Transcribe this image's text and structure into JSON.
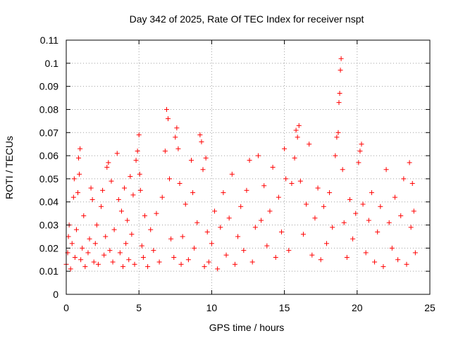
{
  "chart_data": {
    "type": "scatter",
    "title": "Day 342 of 2025, Rate Of TEC Index for receiver nspt",
    "xlabel": "GPS time / hours",
    "ylabel": "ROTI / TECUs",
    "xlim": [
      0,
      25
    ],
    "ylim": [
      0,
      0.11
    ],
    "xticks": [
      0,
      5,
      10,
      15,
      20,
      25
    ],
    "xtick_labels": [
      "0",
      "5",
      "10",
      "15",
      "20",
      "25"
    ],
    "yticks": [
      0,
      0.01,
      0.02,
      0.03,
      0.04,
      0.05,
      0.06,
      0.07,
      0.08,
      0.09,
      0.1,
      0.11
    ],
    "ytick_labels": [
      "0",
      "0.01",
      "0.02",
      "0.03",
      "0.04",
      "0.05",
      "0.06",
      "0.07",
      "0.08",
      "0.09",
      "0.1",
      "0.11"
    ],
    "grid": true,
    "marker": "+",
    "color": "#ff0000",
    "series": [
      {
        "name": "ROTI",
        "points": [
          [
            0.0,
            0.013
          ],
          [
            0.1,
            0.018
          ],
          [
            0.15,
            0.025
          ],
          [
            0.2,
            0.03
          ],
          [
            0.3,
            0.011
          ],
          [
            0.4,
            0.022
          ],
          [
            0.5,
            0.042
          ],
          [
            0.55,
            0.05
          ],
          [
            0.6,
            0.016
          ],
          [
            0.7,
            0.028
          ],
          [
            0.8,
            0.044
          ],
          [
            0.85,
            0.059
          ],
          [
            0.9,
            0.052
          ],
          [
            0.95,
            0.063
          ],
          [
            1.0,
            0.015
          ],
          [
            1.1,
            0.02
          ],
          [
            1.2,
            0.034
          ],
          [
            1.3,
            0.012
          ],
          [
            1.5,
            0.018
          ],
          [
            1.6,
            0.024
          ],
          [
            1.7,
            0.046
          ],
          [
            1.8,
            0.041
          ],
          [
            1.9,
            0.014
          ],
          [
            2.0,
            0.022
          ],
          [
            2.1,
            0.03
          ],
          [
            2.2,
            0.013
          ],
          [
            2.4,
            0.038
          ],
          [
            2.5,
            0.045
          ],
          [
            2.6,
            0.017
          ],
          [
            2.7,
            0.025
          ],
          [
            2.8,
            0.055
          ],
          [
            2.9,
            0.057
          ],
          [
            3.0,
            0.019
          ],
          [
            3.1,
            0.049
          ],
          [
            3.2,
            0.014
          ],
          [
            3.3,
            0.028
          ],
          [
            3.5,
            0.061
          ],
          [
            3.6,
            0.041
          ],
          [
            3.7,
            0.018
          ],
          [
            3.8,
            0.036
          ],
          [
            3.9,
            0.012
          ],
          [
            4.0,
            0.046
          ],
          [
            4.1,
            0.022
          ],
          [
            4.2,
            0.032
          ],
          [
            4.3,
            0.015
          ],
          [
            4.4,
            0.051
          ],
          [
            4.5,
            0.026
          ],
          [
            4.6,
            0.043
          ],
          [
            4.7,
            0.013
          ],
          [
            4.8,
            0.058
          ],
          [
            4.9,
            0.062
          ],
          [
            5.0,
            0.069
          ],
          [
            5.05,
            0.052
          ],
          [
            5.1,
            0.045
          ],
          [
            5.2,
            0.021
          ],
          [
            5.3,
            0.016
          ],
          [
            5.4,
            0.034
          ],
          [
            5.6,
            0.012
          ],
          [
            5.8,
            0.028
          ],
          [
            6.0,
            0.019
          ],
          [
            6.2,
            0.035
          ],
          [
            6.4,
            0.014
          ],
          [
            6.6,
            0.042
          ],
          [
            6.8,
            0.062
          ],
          [
            6.9,
            0.08
          ],
          [
            7.0,
            0.076
          ],
          [
            7.1,
            0.05
          ],
          [
            7.2,
            0.024
          ],
          [
            7.4,
            0.016
          ],
          [
            7.5,
            0.068
          ],
          [
            7.6,
            0.072
          ],
          [
            7.7,
            0.063
          ],
          [
            7.8,
            0.048
          ],
          [
            7.9,
            0.013
          ],
          [
            8.0,
            0.025
          ],
          [
            8.2,
            0.039
          ],
          [
            8.4,
            0.015
          ],
          [
            8.6,
            0.058
          ],
          [
            8.7,
            0.044
          ],
          [
            8.8,
            0.02
          ],
          [
            9.0,
            0.031
          ],
          [
            9.2,
            0.069
          ],
          [
            9.3,
            0.066
          ],
          [
            9.4,
            0.054
          ],
          [
            9.5,
            0.012
          ],
          [
            9.6,
            0.059
          ],
          [
            9.7,
            0.027
          ],
          [
            9.8,
            0.014
          ],
          [
            10.0,
            0.022
          ],
          [
            10.2,
            0.036
          ],
          [
            10.4,
            0.011
          ],
          [
            10.6,
            0.029
          ],
          [
            10.8,
            0.044
          ],
          [
            11.0,
            0.017
          ],
          [
            11.2,
            0.033
          ],
          [
            11.4,
            0.052
          ],
          [
            11.6,
            0.013
          ],
          [
            11.8,
            0.025
          ],
          [
            12.0,
            0.038
          ],
          [
            12.2,
            0.019
          ],
          [
            12.4,
            0.045
          ],
          [
            12.6,
            0.058
          ],
          [
            12.8,
            0.014
          ],
          [
            13.0,
            0.029
          ],
          [
            13.2,
            0.06
          ],
          [
            13.4,
            0.032
          ],
          [
            13.6,
            0.047
          ],
          [
            13.8,
            0.021
          ],
          [
            14.0,
            0.036
          ],
          [
            14.2,
            0.055
          ],
          [
            14.4,
            0.016
          ],
          [
            14.6,
            0.042
          ],
          [
            14.8,
            0.027
          ],
          [
            15.0,
            0.063
          ],
          [
            15.1,
            0.05
          ],
          [
            15.3,
            0.019
          ],
          [
            15.5,
            0.048
          ],
          [
            15.7,
            0.059
          ],
          [
            15.8,
            0.071
          ],
          [
            15.9,
            0.068
          ],
          [
            16.0,
            0.073
          ],
          [
            16.1,
            0.049
          ],
          [
            16.3,
            0.026
          ],
          [
            16.5,
            0.039
          ],
          [
            16.7,
            0.065
          ],
          [
            16.9,
            0.017
          ],
          [
            17.1,
            0.033
          ],
          [
            17.3,
            0.046
          ],
          [
            17.5,
            0.015
          ],
          [
            17.7,
            0.038
          ],
          [
            17.9,
            0.022
          ],
          [
            18.1,
            0.044
          ],
          [
            18.3,
            0.029
          ],
          [
            18.5,
            0.06
          ],
          [
            18.6,
            0.068
          ],
          [
            18.7,
            0.07
          ],
          [
            18.75,
            0.083
          ],
          [
            18.8,
            0.087
          ],
          [
            18.85,
            0.097
          ],
          [
            18.9,
            0.102
          ],
          [
            19.0,
            0.054
          ],
          [
            19.1,
            0.031
          ],
          [
            19.3,
            0.016
          ],
          [
            19.5,
            0.041
          ],
          [
            19.7,
            0.024
          ],
          [
            19.9,
            0.035
          ],
          [
            20.1,
            0.057
          ],
          [
            20.2,
            0.062
          ],
          [
            20.3,
            0.065
          ],
          [
            20.4,
            0.039
          ],
          [
            20.6,
            0.018
          ],
          [
            20.8,
            0.032
          ],
          [
            21.0,
            0.044
          ],
          [
            21.2,
            0.014
          ],
          [
            21.4,
            0.027
          ],
          [
            21.6,
            0.038
          ],
          [
            21.8,
            0.012
          ],
          [
            22.0,
            0.054
          ],
          [
            22.2,
            0.031
          ],
          [
            22.4,
            0.02
          ],
          [
            22.6,
            0.042
          ],
          [
            22.8,
            0.015
          ],
          [
            23.0,
            0.034
          ],
          [
            23.2,
            0.05
          ],
          [
            23.4,
            0.013
          ],
          [
            23.6,
            0.057
          ],
          [
            23.7,
            0.029
          ],
          [
            23.8,
            0.048
          ],
          [
            23.9,
            0.036
          ],
          [
            24.0,
            0.018
          ]
        ]
      }
    ]
  }
}
